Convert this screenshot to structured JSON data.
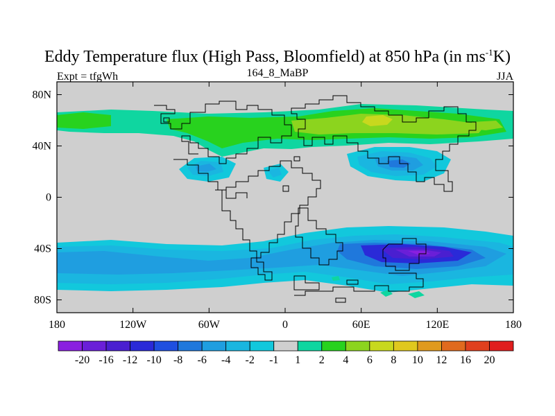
{
  "title": {
    "main": "Eddy Temperature flux (High Pass, Bloomfield) at 850 hPa (in ms",
    "sup": "-1",
    "end": "K)"
  },
  "subtitle": {
    "left": "Expt = tfgWh",
    "center": "164_8_MaBP",
    "right": "JJA"
  },
  "axes": {
    "lat_labels": [
      "80N",
      "40N",
      "0",
      "40S",
      "80S"
    ],
    "lat_values": [
      80,
      40,
      0,
      -40,
      -80
    ],
    "lon_labels": [
      "180",
      "120W",
      "60W",
      "0",
      "60E",
      "120E",
      "180"
    ],
    "lon_values": [
      -180,
      -120,
      -60,
      0,
      60,
      120,
      180
    ],
    "lat_range": [
      -90,
      90
    ],
    "lon_range": [
      -180,
      180
    ]
  },
  "colorbar": {
    "labels": [
      "-20",
      "-16",
      "-12",
      "-10",
      "-8",
      "-6",
      "-4",
      "-2",
      "-1",
      "1",
      "2",
      "4",
      "6",
      "8",
      "10",
      "12",
      "16",
      "20"
    ],
    "colors": [
      "#8a1fe0",
      "#6a1fd8",
      "#4a1fd0",
      "#2a2ad8",
      "#1f4fe0",
      "#1f78dc",
      "#1f9ee0",
      "#1ab6e0",
      "#12c8dc",
      "#cfcfcf",
      "#0fd6a0",
      "#28d21e",
      "#8cd41e",
      "#c8d81e",
      "#e0c81e",
      "#e09a1e",
      "#e06a1e",
      "#e0401e",
      "#e01e1e"
    ]
  },
  "colors": {
    "land": "#cfcfcf",
    "coast": "#000000",
    "c_m6": "#1f78dc",
    "c_m4": "#1f9ee0",
    "c_m2": "#1ab6e0",
    "c_m1": "#12c8dc",
    "c_p1": "#0fd6a0",
    "c_p2": "#28d21e",
    "c_p4": "#8cd41e",
    "c_p6": "#c8d81e",
    "c_n10": "#2a2ad8",
    "c_n12": "#4a1fd0",
    "c_n16": "#6a1fd8",
    "c_n20": "#8a1fe0"
  }
}
